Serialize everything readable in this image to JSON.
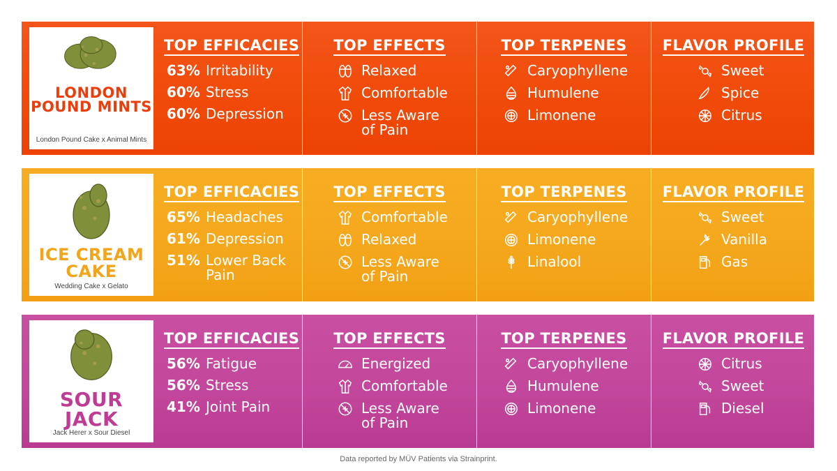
{
  "rows": [
    {
      "strain_name": "LONDON\nPOUND MINTS",
      "strain_cross": "London Pound Cake x Animal Mints",
      "efficacies_title": "TOP EFFICACIES",
      "efficacies": [
        {
          "pct": "63%",
          "label": "Irritability"
        },
        {
          "pct": "60%",
          "label": "Stress"
        },
        {
          "pct": "60%",
          "label": "Depression"
        }
      ],
      "effects_title": "TOP EFFECTS",
      "effects": [
        {
          "icon": "slippers-icon",
          "label": "Relaxed"
        },
        {
          "icon": "robe-icon",
          "label": "Comfortable"
        },
        {
          "icon": "no-pain-icon",
          "label": "Less Aware\nof Pain"
        }
      ],
      "terpenes_title": "TOP TERPENES",
      "terpenes": [
        {
          "icon": "cinnamon-icon",
          "label": "Caryophyllene"
        },
        {
          "icon": "hops-icon",
          "label": "Humulene"
        },
        {
          "icon": "lemon-icon",
          "label": "Limonene"
        }
      ],
      "flavor_title": "FLAVOR PROFILE",
      "flavors": [
        {
          "icon": "candy-icon",
          "label": "Sweet"
        },
        {
          "icon": "chili-icon",
          "label": "Spice"
        },
        {
          "icon": "citrus-icon",
          "label": "Citrus"
        }
      ]
    },
    {
      "strain_name": "ICE CREAM\nCAKE",
      "strain_cross": "Wedding Cake x Gelato",
      "efficacies_title": "TOP EFFICACIES",
      "efficacies": [
        {
          "pct": "65%",
          "label": "Headaches"
        },
        {
          "pct": "61%",
          "label": "Depression"
        },
        {
          "pct": "51%",
          "label": "Lower Back\nPain"
        }
      ],
      "effects_title": "TOP EFFECTS",
      "effects": [
        {
          "icon": "robe-icon",
          "label": "Comfortable"
        },
        {
          "icon": "slippers-icon",
          "label": "Relaxed"
        },
        {
          "icon": "no-pain-icon",
          "label": "Less Aware\nof Pain"
        }
      ],
      "terpenes_title": "TOP TERPENES",
      "terpenes": [
        {
          "icon": "cinnamon-icon",
          "label": "Caryophyllene"
        },
        {
          "icon": "lemon-icon",
          "label": "Limonene"
        },
        {
          "icon": "lavender-icon",
          "label": "Linalool"
        }
      ],
      "flavor_title": "FLAVOR PROFILE",
      "flavors": [
        {
          "icon": "candy-icon",
          "label": "Sweet"
        },
        {
          "icon": "vanilla-icon",
          "label": "Vanilla"
        },
        {
          "icon": "gas-pump-icon",
          "label": "Gas"
        }
      ]
    },
    {
      "strain_name": "SOUR\nJACK",
      "strain_cross": "Jack Herer x Sour Diesel",
      "efficacies_title": "TOP EFFICACIES",
      "efficacies": [
        {
          "pct": "56%",
          "label": "Fatigue"
        },
        {
          "pct": "56%",
          "label": "Stress"
        },
        {
          "pct": "41%",
          "label": "Joint Pain"
        }
      ],
      "effects_title": "TOP EFFECTS",
      "effects": [
        {
          "icon": "speedometer-icon",
          "label": "Energized"
        },
        {
          "icon": "robe-icon",
          "label": "Comfortable"
        },
        {
          "icon": "no-pain-icon",
          "label": "Less Aware\nof Pain"
        }
      ],
      "terpenes_title": "TOP TERPENES",
      "terpenes": [
        {
          "icon": "cinnamon-icon",
          "label": "Caryophyllene"
        },
        {
          "icon": "hops-icon",
          "label": "Humulene"
        },
        {
          "icon": "lemon-icon",
          "label": "Limonene"
        }
      ],
      "flavor_title": "FLAVOR PROFILE",
      "flavors": [
        {
          "icon": "citrus-icon",
          "label": "Citrus"
        },
        {
          "icon": "candy-icon",
          "label": "Sweet"
        },
        {
          "icon": "gas-pump-icon",
          "label": "Diesel"
        }
      ]
    }
  ],
  "footer": "Data reported by MÜV Patients via Strainprint.",
  "colors": {
    "row_1": "#f04a08",
    "row_2": "#f5a71c",
    "row_3": "#c2469b",
    "bud_green": "#7f8f3a"
  }
}
